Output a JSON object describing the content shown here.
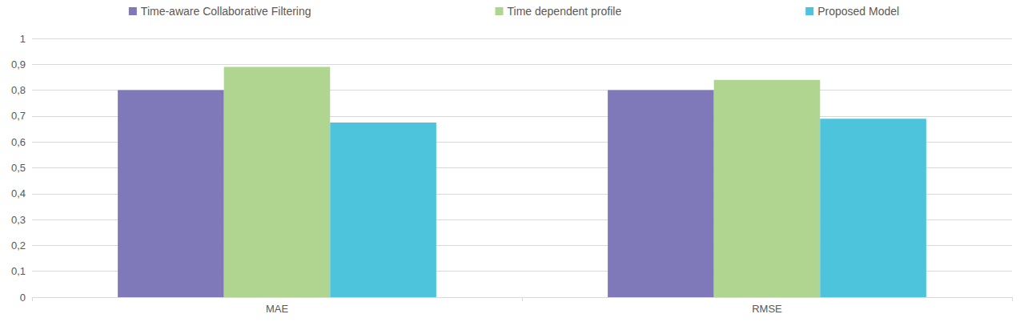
{
  "chart_data": {
    "type": "bar",
    "categories": [
      "MAE",
      "RMSE"
    ],
    "series": [
      {
        "name": "Time-aware Collaborative Filtering",
        "color": "#7f79b9",
        "values": [
          0.8,
          0.8
        ]
      },
      {
        "name": "Time dependent profile",
        "color": "#afd590",
        "values": [
          0.89,
          0.84
        ]
      },
      {
        "name": "Proposed Model",
        "color": "#4ec4dc",
        "values": [
          0.675,
          0.69
        ]
      }
    ],
    "ylim": [
      0,
      1
    ],
    "yticks": [
      0,
      {
        "value": 0.1,
        "label": "0,1"
      },
      {
        "value": 0.2,
        "label": "0,2"
      },
      {
        "value": 0.3,
        "label": "0,3"
      },
      {
        "value": 0.4,
        "label": "0,4"
      },
      {
        "value": 0.5,
        "label": "0,5"
      },
      {
        "value": 0.6,
        "label": "0,6"
      },
      {
        "value": 0.7,
        "label": "0,7"
      },
      {
        "value": 0.8,
        "label": "0,8"
      },
      {
        "value": 0.9,
        "label": "0,9"
      },
      1
    ],
    "grid": true,
    "legend": "top"
  }
}
